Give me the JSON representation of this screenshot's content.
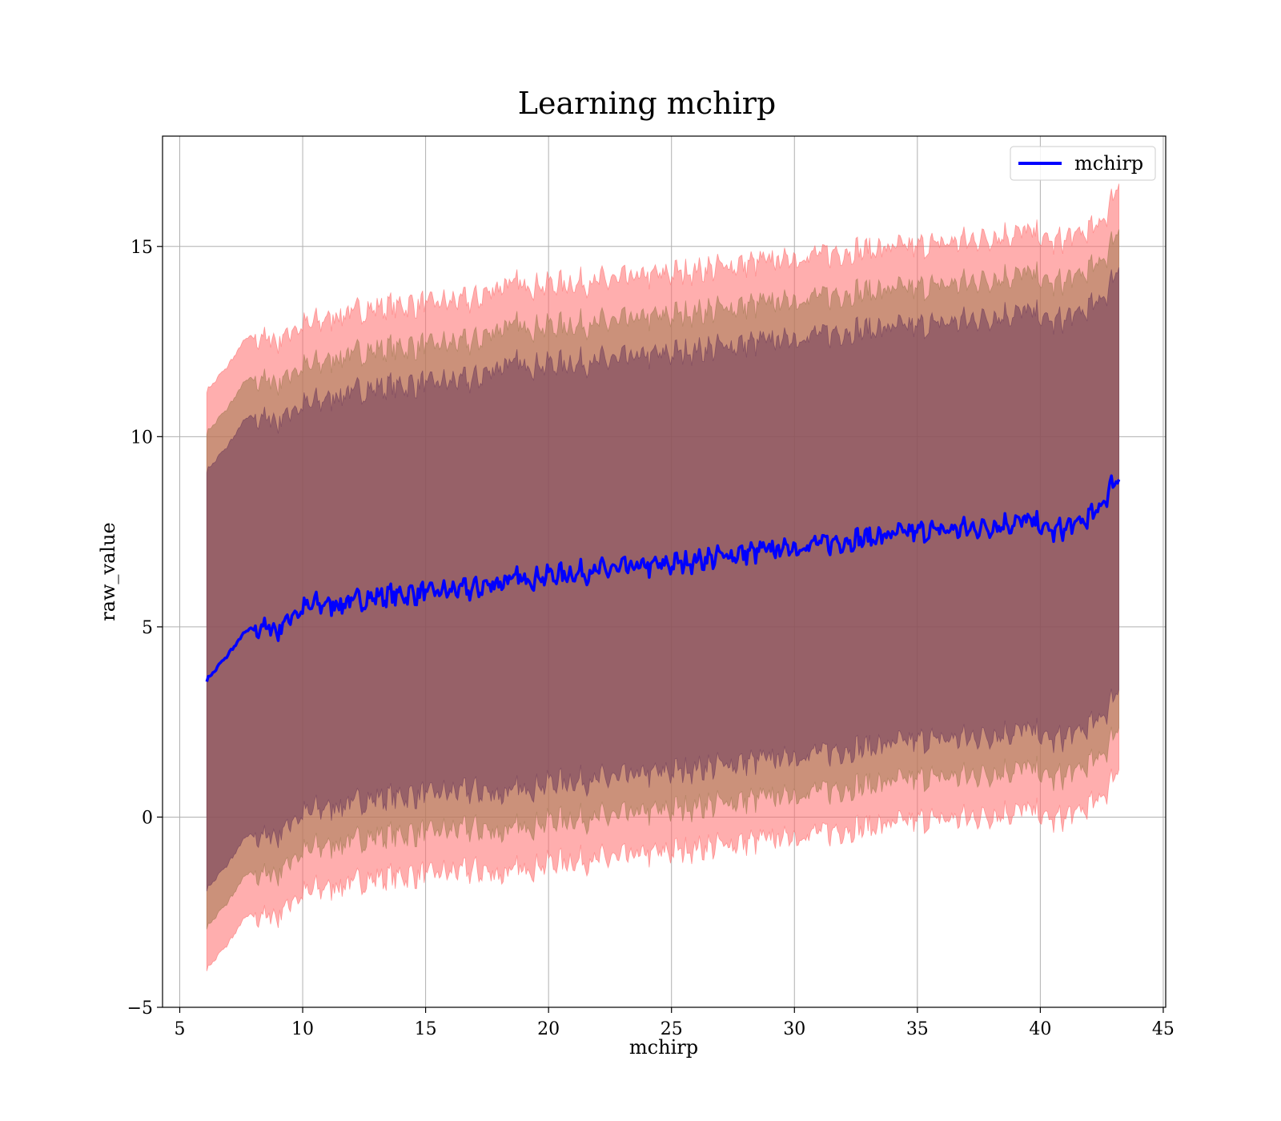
{
  "chart_data": {
    "type": "line",
    "title": "Learning mchirp",
    "xlabel": "mchirp",
    "ylabel": "raw_value",
    "xlim": [
      4.3,
      45.1
    ],
    "ylim": [
      -5,
      17.9
    ],
    "xticks": [
      5,
      10,
      15,
      20,
      25,
      30,
      35,
      40,
      45
    ],
    "yticks": [
      -5,
      0,
      5,
      10,
      15
    ],
    "xtick_labels": [
      "5",
      "10",
      "15",
      "20",
      "25",
      "30",
      "35",
      "40",
      "45"
    ],
    "ytick_labels": [
      "−5",
      "0",
      "5",
      "10",
      "15"
    ],
    "grid": true,
    "legend": {
      "placement": "top-right",
      "entries": [
        {
          "label": "mchirp",
          "color": "#0000ff"
        }
      ]
    },
    "colors": {
      "mean_line": "#0000ff",
      "band_3sigma": "#ff6b6b",
      "band_2sigma": "#a07a50",
      "band_1sigma": "#6e3a5a",
      "grid": "#b0b0b0"
    },
    "series": [
      {
        "name": "mchirp",
        "x": [
          6.1,
          7.0,
          7.7,
          8.5,
          9.0,
          9.5,
          10.5,
          11.5,
          13.0,
          15.0,
          17.0,
          18.1,
          20.0,
          22.5,
          25.0,
          27.5,
          30.0,
          32.5,
          35.0,
          37.5,
          39.5,
          40.5,
          41.5,
          42.3,
          42.8,
          43.2
        ],
        "y": [
          3.6,
          4.3,
          4.9,
          5.0,
          4.9,
          5.3,
          5.6,
          5.6,
          5.8,
          5.9,
          6.0,
          6.2,
          6.35,
          6.5,
          6.65,
          6.9,
          7.1,
          7.3,
          7.5,
          7.6,
          7.8,
          7.5,
          7.7,
          8.0,
          8.6,
          9.0
        ]
      }
    ],
    "bands": [
      {
        "level": 3,
        "x": [
          6.1,
          7.0,
          7.7,
          8.5,
          9.0,
          9.5,
          10.5,
          11.5,
          13.0,
          15.0,
          17.0,
          18.1,
          20.0,
          22.5,
          25.0,
          27.5,
          30.0,
          32.5,
          35.0,
          37.5,
          39.5,
          40.5,
          41.5,
          42.3,
          42.8,
          43.2
        ],
        "upper": [
          11.2,
          11.9,
          12.6,
          12.6,
          12.5,
          12.8,
          13.0,
          13.2,
          13.4,
          13.5,
          13.6,
          14.0,
          14.0,
          14.1,
          14.3,
          14.5,
          14.7,
          14.9,
          15.0,
          15.2,
          15.4,
          15.1,
          15.3,
          15.5,
          16.0,
          16.8
        ],
        "lower": [
          -4.0,
          -3.3,
          -2.6,
          -2.6,
          -2.6,
          -2.2,
          -1.9,
          -1.8,
          -1.6,
          -1.5,
          -1.4,
          -1.5,
          -1.2,
          -1.1,
          -0.9,
          -0.7,
          -0.5,
          -0.3,
          -0.1,
          0.0,
          0.2,
          -0.1,
          0.1,
          0.4,
          0.8,
          1.4
        ]
      },
      {
        "level": 2,
        "x": [
          6.1,
          7.0,
          7.7,
          8.5,
          9.0,
          9.5,
          10.5,
          11.5,
          13.0,
          15.0,
          17.0,
          18.1,
          20.0,
          22.5,
          25.0,
          27.5,
          30.0,
          32.5,
          35.0,
          37.5,
          39.5,
          40.5,
          41.5,
          42.3,
          42.8,
          43.2
        ],
        "upper": [
          10.1,
          10.8,
          11.5,
          11.5,
          11.4,
          11.7,
          11.9,
          12.1,
          12.3,
          12.4,
          12.5,
          12.9,
          12.9,
          13.0,
          13.2,
          13.4,
          13.6,
          13.8,
          13.9,
          14.1,
          14.3,
          14.0,
          14.2,
          14.5,
          14.9,
          15.6
        ],
        "lower": [
          -2.9,
          -2.2,
          -1.5,
          -1.5,
          -1.5,
          -1.1,
          -0.8,
          -0.7,
          -0.5,
          -0.4,
          -0.3,
          -0.4,
          -0.1,
          0.0,
          0.2,
          0.4,
          0.6,
          0.8,
          1.0,
          1.1,
          1.3,
          1.0,
          1.2,
          1.5,
          1.9,
          2.5
        ]
      },
      {
        "level": 1,
        "x": [
          6.1,
          7.0,
          7.7,
          8.5,
          9.0,
          9.5,
          10.5,
          11.5,
          13.0,
          15.0,
          17.0,
          18.1,
          20.0,
          22.5,
          25.0,
          27.5,
          30.0,
          32.5,
          35.0,
          37.5,
          39.5,
          40.5,
          41.5,
          42.3,
          42.8,
          43.2
        ],
        "upper": [
          9.1,
          9.8,
          10.5,
          10.5,
          10.4,
          10.7,
          10.9,
          11.1,
          11.3,
          11.4,
          11.5,
          11.9,
          11.9,
          12.0,
          12.2,
          12.4,
          12.6,
          12.8,
          12.9,
          13.1,
          13.3,
          13.0,
          13.2,
          13.5,
          13.9,
          14.6
        ],
        "lower": [
          -1.9,
          -1.2,
          -0.5,
          -0.5,
          -0.5,
          -0.1,
          0.2,
          0.3,
          0.5,
          0.6,
          0.7,
          0.6,
          0.9,
          1.0,
          1.2,
          1.4,
          1.6,
          1.8,
          2.0,
          2.1,
          2.3,
          2.0,
          2.2,
          2.5,
          2.9,
          3.5
        ]
      }
    ]
  }
}
